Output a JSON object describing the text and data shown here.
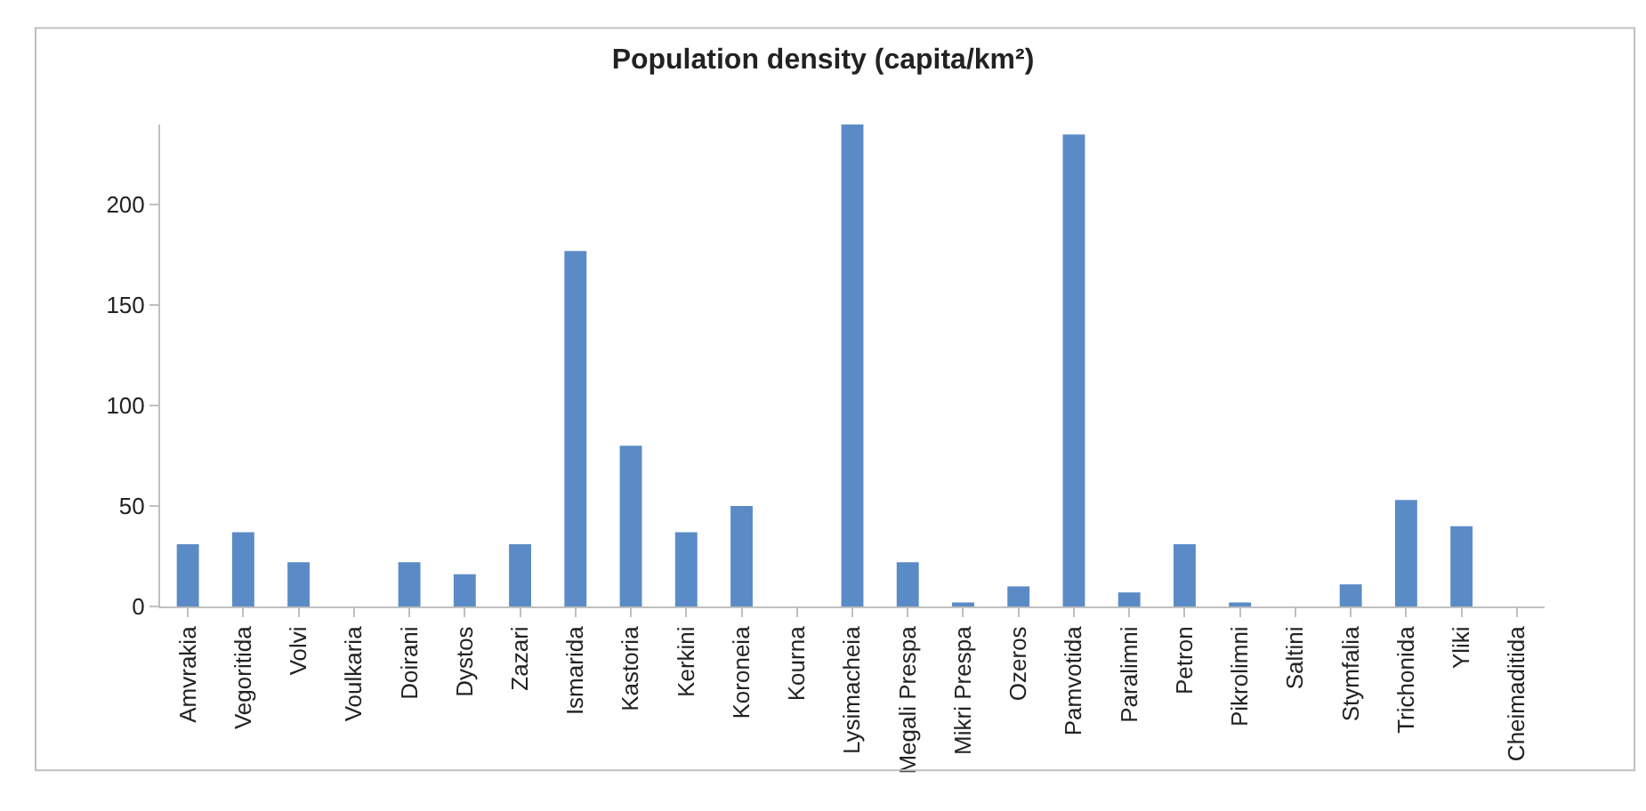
{
  "chart_data": {
    "type": "bar",
    "title": "Population density (capita/km²)",
    "categories": [
      "Amvrakia",
      "Vegoritida",
      "Volvi",
      "Voulkaria",
      "Doirani",
      "Dystos",
      "Zazari",
      "Ismarida",
      "Kastoria",
      "Kerkini",
      "Koroneia",
      "Kourna",
      "Lysimacheia",
      "Megali Prespa",
      "Mikri Prespa",
      "Ozeros",
      "Pamvotida",
      "Paralimni",
      "Petron",
      "Pikrolimni",
      "Saltini",
      "Stymfalia",
      "Trichonida",
      "Yliki",
      "Cheimaditida"
    ],
    "values": [
      31,
      37,
      22,
      0,
      22,
      16,
      31,
      177,
      80,
      37,
      50,
      0,
      240,
      22,
      2,
      10,
      235,
      7,
      31,
      2,
      0,
      11,
      53,
      40,
      0
    ],
    "color": "#5b8bc6",
    "ylim": [
      0,
      240
    ],
    "yticks": [
      0,
      50,
      100,
      150,
      200
    ],
    "legend": false
  }
}
